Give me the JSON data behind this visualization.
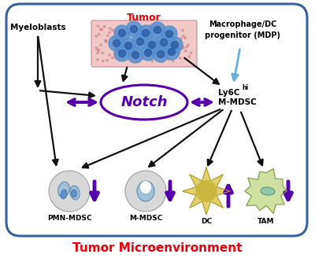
{
  "title": "Tumor Microenvironment",
  "title_color": "#e8000d",
  "title_fontsize": 11,
  "border_color": "#3a5fa0",
  "border_linewidth": 2.0,
  "background_color": "#ffffff",
  "notch_label": "Notch",
  "notch_color": "#5500aa",
  "tumor_label": "Tumor",
  "tumor_label_color": "#e8000d",
  "myeloblasts_label": "Myeloblasts",
  "mdp_label": "Macrophage/DC\nprogenitor (MDP)",
  "pmn_label": "PMN-MDSC",
  "mmdsc_label": "M-MDSC",
  "dc_label": "DC",
  "tam_label": "TAM",
  "arrow_black": "#111111",
  "arrow_purple": "#5500aa",
  "arrow_blue": "#6ab0de",
  "tumor_bg_color": "#f0c8c8",
  "tumor_cell_color": "#5590d0",
  "tumor_cell_dark": "#2255a0",
  "cell_bg_color": "#d8d8d8",
  "cell_nucleus_color": "#a0c0d8",
  "dc_color": "#e0d070",
  "dc_center_color": "#c8b840",
  "tam_color": "#d0e0a0",
  "tam_inner_color": "#90c8a8"
}
